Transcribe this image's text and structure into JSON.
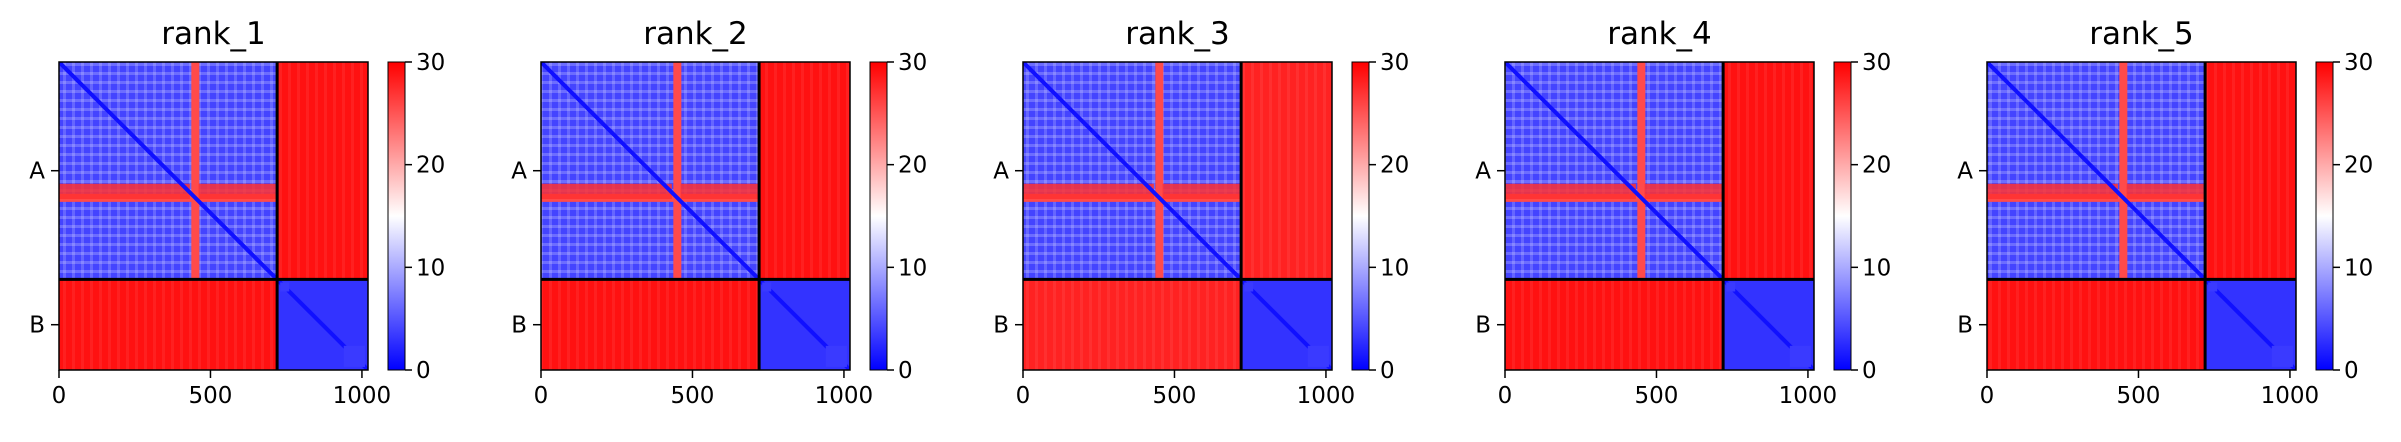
{
  "chart_data": [
    {
      "type": "heatmap",
      "title": "rank_1",
      "xlabel": "",
      "ylabel": "",
      "xlim": [
        0,
        1020
      ],
      "x_ticks": [
        "0",
        "500",
        "1000"
      ],
      "y_tick_labels": [
        "A",
        "B"
      ],
      "chain_boundary": 720,
      "colorbar": {
        "colormap": "bwr",
        "min": 0,
        "max": 30,
        "ticks": [
          "0",
          "10",
          "20",
          "30"
        ],
        "colors": [
          "#0000ff",
          "#ffffff",
          "#ff0000"
        ]
      },
      "blocks": [
        {
          "rows": "A",
          "cols": "A",
          "mean_value": 4
        },
        {
          "rows": "A",
          "cols": "B",
          "mean_value": 29
        },
        {
          "rows": "B",
          "cols": "A",
          "mean_value": 29
        },
        {
          "rows": "B",
          "cols": "B",
          "mean_value": 3
        }
      ]
    },
    {
      "type": "heatmap",
      "title": "rank_2",
      "xlabel": "",
      "ylabel": "",
      "xlim": [
        0,
        1020
      ],
      "x_ticks": [
        "0",
        "500",
        "1000"
      ],
      "y_tick_labels": [
        "A",
        "B"
      ],
      "chain_boundary": 720,
      "colorbar": {
        "colormap": "bwr",
        "min": 0,
        "max": 30,
        "ticks": [
          "0",
          "10",
          "20",
          "30"
        ],
        "colors": [
          "#0000ff",
          "#ffffff",
          "#ff0000"
        ]
      },
      "blocks": [
        {
          "rows": "A",
          "cols": "A",
          "mean_value": 4
        },
        {
          "rows": "A",
          "cols": "B",
          "mean_value": 29
        },
        {
          "rows": "B",
          "cols": "A",
          "mean_value": 29
        },
        {
          "rows": "B",
          "cols": "B",
          "mean_value": 3
        }
      ]
    },
    {
      "type": "heatmap",
      "title": "rank_3",
      "xlabel": "",
      "ylabel": "",
      "xlim": [
        0,
        1020
      ],
      "x_ticks": [
        "0",
        "500",
        "1000"
      ],
      "y_tick_labels": [
        "A",
        "B"
      ],
      "chain_boundary": 720,
      "colorbar": {
        "colormap": "bwr",
        "min": 0,
        "max": 30,
        "ticks": [
          "0",
          "10",
          "20",
          "30"
        ],
        "colors": [
          "#0000ff",
          "#ffffff",
          "#ff0000"
        ]
      },
      "blocks": [
        {
          "rows": "A",
          "cols": "A",
          "mean_value": 4
        },
        {
          "rows": "A",
          "cols": "B",
          "mean_value": 28
        },
        {
          "rows": "B",
          "cols": "A",
          "mean_value": 28
        },
        {
          "rows": "B",
          "cols": "B",
          "mean_value": 3
        }
      ]
    },
    {
      "type": "heatmap",
      "title": "rank_4",
      "xlabel": "",
      "ylabel": "",
      "xlim": [
        0,
        1020
      ],
      "x_ticks": [
        "0",
        "500",
        "1000"
      ],
      "y_tick_labels": [
        "A",
        "B"
      ],
      "chain_boundary": 720,
      "colorbar": {
        "colormap": "bwr",
        "min": 0,
        "max": 30,
        "ticks": [
          "0",
          "10",
          "20",
          "30"
        ],
        "colors": [
          "#0000ff",
          "#ffffff",
          "#ff0000"
        ]
      },
      "blocks": [
        {
          "rows": "A",
          "cols": "A",
          "mean_value": 4
        },
        {
          "rows": "A",
          "cols": "B",
          "mean_value": 29
        },
        {
          "rows": "B",
          "cols": "A",
          "mean_value": 29
        },
        {
          "rows": "B",
          "cols": "B",
          "mean_value": 3
        }
      ]
    },
    {
      "type": "heatmap",
      "title": "rank_5",
      "xlabel": "",
      "ylabel": "",
      "xlim": [
        0,
        1020
      ],
      "x_ticks": [
        "0",
        "500",
        "1000"
      ],
      "y_tick_labels": [
        "A",
        "B"
      ],
      "chain_boundary": 720,
      "colorbar": {
        "colormap": "bwr",
        "min": 0,
        "max": 30,
        "ticks": [
          "0",
          "10",
          "20",
          "30"
        ],
        "colors": [
          "#0000ff",
          "#ffffff",
          "#ff0000"
        ]
      },
      "blocks": [
        {
          "rows": "A",
          "cols": "A",
          "mean_value": 4
        },
        {
          "rows": "A",
          "cols": "B",
          "mean_value": 29
        },
        {
          "rows": "B",
          "cols": "A",
          "mean_value": 29
        },
        {
          "rows": "B",
          "cols": "B",
          "mean_value": 3
        }
      ]
    }
  ]
}
